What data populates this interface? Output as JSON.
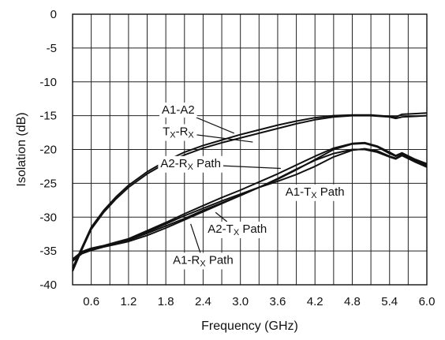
{
  "chart_data": {
    "type": "line",
    "title": "",
    "xlabel": "Frequency (GHz)",
    "ylabel": "Isolation (dB)",
    "xlim": [
      0.3,
      6.0
    ],
    "ylim": [
      -40,
      0
    ],
    "x_ticks": [
      0.6,
      1.2,
      1.8,
      2.4,
      3.0,
      3.6,
      4.2,
      4.8,
      5.4,
      6.0
    ],
    "x_tick_labels": [
      "0.6",
      "1.2",
      "1.8",
      "2.4",
      "3.0",
      "3.6",
      "4.2",
      "4.8",
      "5.4",
      "6.0"
    ],
    "y_ticks": [
      0,
      -5,
      -10,
      -15,
      -20,
      -25,
      -30,
      -35,
      -40
    ],
    "y_tick_labels": [
      "0",
      "-5",
      "-10",
      "-15",
      "-20",
      "-25",
      "-30",
      "-35",
      "-40"
    ],
    "x_minor_step": 0.3,
    "grid": true,
    "legend": "none",
    "series": [
      {
        "name": "A1-A2",
        "x": [
          0.3,
          0.45,
          0.6,
          0.8,
          1.0,
          1.2,
          1.5,
          1.8,
          2.1,
          2.4,
          2.7,
          3.0,
          3.3,
          3.6,
          3.9,
          4.2,
          4.5,
          4.8,
          5.1,
          5.4,
          5.5,
          5.6,
          5.8,
          6.0
        ],
        "y": [
          -37.5,
          -34.5,
          -31.5,
          -29.0,
          -27.0,
          -25.3,
          -23.3,
          -21.7,
          -20.4,
          -19.4,
          -18.6,
          -17.8,
          -17.1,
          -16.4,
          -15.8,
          -15.3,
          -15.0,
          -14.9,
          -14.9,
          -15.1,
          -15.2,
          -14.8,
          -14.7,
          -14.6
        ]
      },
      {
        "name": "TX-RX",
        "x": [
          0.3,
          0.45,
          0.6,
          0.8,
          1.0,
          1.2,
          1.5,
          1.8,
          2.1,
          2.4,
          2.7,
          3.0,
          3.3,
          3.6,
          3.9,
          4.2,
          4.5,
          4.8,
          5.1,
          5.4,
          5.5,
          5.6,
          5.8,
          6.0
        ],
        "y": [
          -38.0,
          -34.8,
          -31.8,
          -29.3,
          -27.3,
          -25.6,
          -23.6,
          -22.0,
          -20.8,
          -19.8,
          -19.0,
          -18.3,
          -17.6,
          -16.9,
          -16.2,
          -15.6,
          -15.2,
          -15.0,
          -15.0,
          -15.2,
          -15.4,
          -15.2,
          -15.1,
          -15.0
        ]
      },
      {
        "name": "A2-RX Path",
        "x": [
          0.3,
          0.45,
          0.6,
          0.8,
          1.0,
          1.2,
          1.5,
          1.8,
          2.1,
          2.4,
          2.7,
          3.0,
          3.3,
          3.6,
          3.9,
          4.2,
          4.5,
          4.8,
          5.0,
          5.2,
          5.4,
          5.5,
          5.6,
          5.8,
          6.0
        ],
        "y": [
          -36.3,
          -35.2,
          -34.7,
          -34.3,
          -33.8,
          -33.3,
          -32.2,
          -31.0,
          -29.8,
          -28.7,
          -27.6,
          -26.6,
          -25.6,
          -24.7,
          -23.7,
          -22.5,
          -21.1,
          -20.1,
          -19.9,
          -20.2,
          -21.0,
          -21.3,
          -20.8,
          -21.7,
          -22.4
        ]
      },
      {
        "name": "A1-TX Path",
        "x": [
          0.3,
          0.45,
          0.6,
          0.8,
          1.0,
          1.2,
          1.5,
          1.8,
          2.1,
          2.4,
          2.7,
          3.0,
          3.3,
          3.6,
          3.9,
          4.2,
          4.5,
          4.8,
          5.0,
          5.2,
          5.4,
          5.5,
          5.6,
          5.8,
          6.0
        ],
        "y": [
          -36.4,
          -35.3,
          -34.8,
          -34.3,
          -33.9,
          -33.4,
          -32.4,
          -31.3,
          -30.2,
          -29.0,
          -27.9,
          -26.8,
          -25.6,
          -24.4,
          -23.0,
          -21.5,
          -20.0,
          -19.2,
          -19.1,
          -19.6,
          -20.6,
          -21.0,
          -20.6,
          -21.5,
          -22.2
        ]
      },
      {
        "name": "A2-TX Path",
        "x": [
          0.3,
          0.45,
          0.6,
          0.8,
          1.0,
          1.2,
          1.5,
          1.8,
          2.1,
          2.4,
          2.7,
          3.0,
          3.3,
          3.6,
          3.9,
          4.2,
          4.5,
          4.8,
          5.0,
          5.2,
          5.4,
          5.5,
          5.6,
          5.8,
          6.0
        ],
        "y": [
          -36.2,
          -35.1,
          -34.6,
          -34.2,
          -33.7,
          -33.2,
          -32.0,
          -30.8,
          -29.5,
          -28.3,
          -27.1,
          -26.0,
          -24.8,
          -23.6,
          -22.3,
          -21.0,
          -19.8,
          -19.1,
          -19.0,
          -19.5,
          -20.4,
          -20.9,
          -20.5,
          -21.4,
          -22.1
        ]
      },
      {
        "name": "A1-RX Path",
        "x": [
          0.3,
          0.45,
          0.6,
          0.8,
          1.0,
          1.2,
          1.5,
          1.8,
          2.1,
          2.4,
          2.7,
          3.0,
          3.3,
          3.6,
          3.9,
          4.2,
          4.5,
          4.8,
          5.0,
          5.2,
          5.4,
          5.5,
          5.6,
          5.8,
          6.0
        ],
        "y": [
          -36.5,
          -35.4,
          -34.9,
          -34.4,
          -34.0,
          -33.6,
          -32.7,
          -31.6,
          -30.4,
          -29.2,
          -28.0,
          -26.8,
          -25.6,
          -24.3,
          -22.9,
          -21.6,
          -20.6,
          -20.0,
          -20.0,
          -20.4,
          -21.1,
          -21.4,
          -20.9,
          -21.8,
          -22.6
        ]
      }
    ],
    "annotations": [
      {
        "name": "A1-A2",
        "parts": [
          [
            "A1-A2",
            false
          ]
        ],
        "text_at": [
          2.0,
          -14.7
        ],
        "arrow_to": [
          2.9,
          -17.6
        ]
      },
      {
        "name": "TX-RX",
        "parts": [
          [
            "T",
            false
          ],
          [
            "X",
            true
          ],
          [
            "-R",
            false
          ],
          [
            "X",
            true
          ]
        ],
        "text_at": [
          2.0,
          -17.9
        ],
        "arrow_to": [
          3.2,
          -18.9
        ]
      },
      {
        "name": "A2-RX Path",
        "parts": [
          [
            "A2-R",
            false
          ],
          [
            "X",
            true
          ],
          [
            " Path",
            false
          ]
        ],
        "text_at": [
          2.2,
          -22.6
        ],
        "arrow_to": [
          3.65,
          -22.8
        ]
      },
      {
        "name": "A1-TX Path",
        "parts": [
          [
            "A1-T",
            false
          ],
          [
            "X",
            true
          ],
          [
            " Path",
            false
          ]
        ],
        "text_at": [
          4.2,
          -26.8
        ],
        "arrow_to": [
          3.7,
          -25.2
        ]
      },
      {
        "name": "A2-TX Path",
        "parts": [
          [
            "A2-T",
            false
          ],
          [
            "X",
            true
          ],
          [
            " Path",
            false
          ]
        ],
        "text_at": [
          2.95,
          -32.3
        ],
        "arrow_to": [
          2.6,
          -29.3
        ]
      },
      {
        "name": "A1-RX Path",
        "parts": [
          [
            "A1-R",
            false
          ],
          [
            "X",
            true
          ],
          [
            " Path",
            false
          ]
        ],
        "text_at": [
          2.4,
          -36.9
        ],
        "arrow_to": [
          2.2,
          -31.0
        ]
      }
    ]
  }
}
